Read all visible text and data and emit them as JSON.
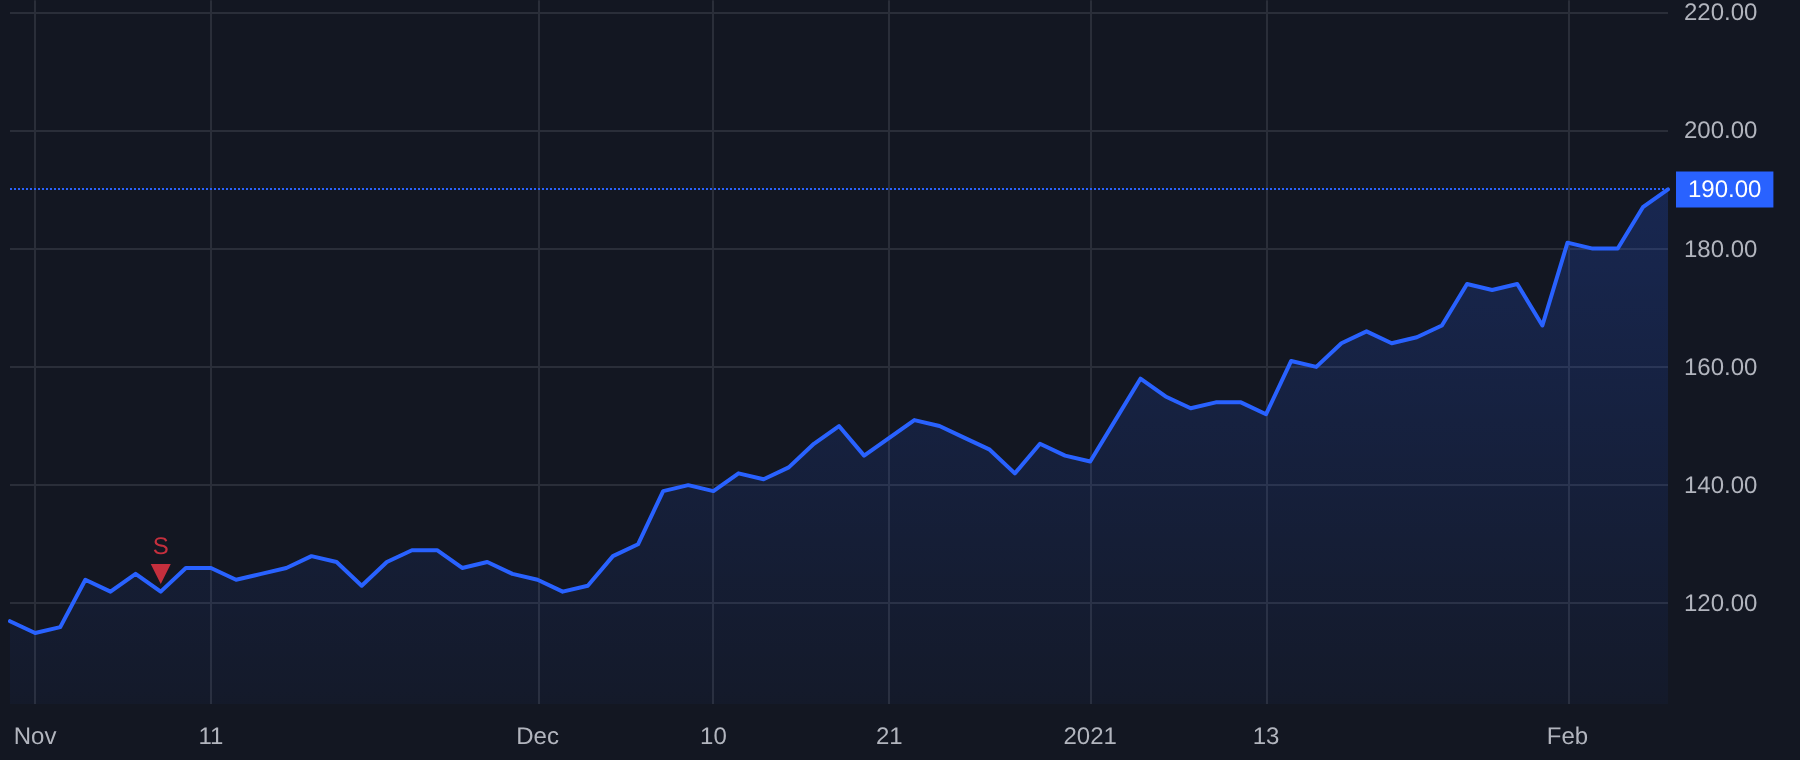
{
  "chart_data": {
    "type": "area",
    "categories": [
      null,
      "Nov",
      null,
      null,
      null,
      null,
      null,
      null,
      "11",
      null,
      null,
      null,
      null,
      null,
      null,
      null,
      null,
      null,
      null,
      null,
      null,
      "Dec",
      null,
      null,
      null,
      null,
      null,
      null,
      "10",
      null,
      null,
      null,
      null,
      null,
      null,
      "21",
      null,
      null,
      null,
      null,
      null,
      null,
      null,
      "2021",
      null,
      null,
      null,
      null,
      null,
      null,
      "13",
      null,
      null,
      null,
      null,
      null,
      null,
      null,
      null,
      null,
      null,
      null,
      "Feb",
      null,
      null,
      null,
      null
    ],
    "series": [
      {
        "color": "#2962ff",
        "values": [
          117,
          115,
          116,
          124,
          122,
          125,
          122,
          126,
          126,
          124,
          125,
          126,
          128,
          127,
          123,
          127,
          129,
          129,
          126,
          127,
          125,
          124,
          122,
          123,
          128,
          130,
          139,
          140,
          139,
          142,
          141,
          143,
          147,
          150,
          145,
          148,
          151,
          150,
          148,
          146,
          142,
          147,
          145,
          144,
          151,
          158,
          155,
          153,
          154,
          154,
          152,
          161,
          160,
          164,
          166,
          164,
          165,
          167,
          174,
          173,
          174,
          167,
          181,
          180,
          180,
          187,
          190
        ]
      },
      {
        "type": "scatter",
        "color": "#f23645",
        "marker": "triangle",
        "values": [
          null,
          null,
          null,
          null,
          null,
          null,
          125,
          null,
          null,
          null,
          null,
          null,
          null,
          null,
          null,
          null,
          null,
          null,
          null,
          null,
          null,
          null,
          null,
          null,
          null,
          null,
          null,
          null,
          null,
          null,
          null,
          null,
          null,
          null,
          null,
          null,
          null,
          null,
          null,
          null,
          null,
          null,
          null,
          null,
          null,
          null,
          null,
          null,
          null,
          null,
          null,
          null,
          null,
          null,
          null,
          null,
          null,
          null,
          null,
          null,
          null,
          null,
          null,
          null,
          null,
          null,
          null
        ],
        "value_labels": [
          null,
          null,
          null,
          null,
          null,
          null,
          "S",
          null,
          null,
          null,
          null,
          null,
          null,
          null,
          null,
          null,
          null,
          null,
          null,
          null,
          null,
          null,
          null,
          null,
          null,
          null,
          null,
          null,
          null,
          null,
          null,
          null,
          null,
          null,
          null,
          null,
          null,
          null,
          null,
          null,
          null,
          null,
          null,
          null,
          null,
          null,
          null,
          null,
          null,
          null,
          null,
          null,
          null,
          null,
          null,
          null,
          null,
          null,
          null,
          null,
          null,
          null,
          null,
          null,
          null,
          null,
          null
        ]
      }
    ],
    "ylim": [
      103,
      222
    ],
    "yticks": [
      {
        "value": 120,
        "label": "120.00"
      },
      {
        "value": 140,
        "label": "140.00"
      },
      {
        "value": 160,
        "label": "160.00"
      },
      {
        "value": 180,
        "label": "180.00"
      },
      {
        "value": 200,
        "label": "200.00"
      },
      {
        "value": 220,
        "label": "220.00"
      }
    ],
    "ref_lines": [
      {
        "axis": "y",
        "value": 190,
        "label": "190.00",
        "color": "#2962ff",
        "line_style": "dotted"
      }
    ],
    "grid": true
  }
}
